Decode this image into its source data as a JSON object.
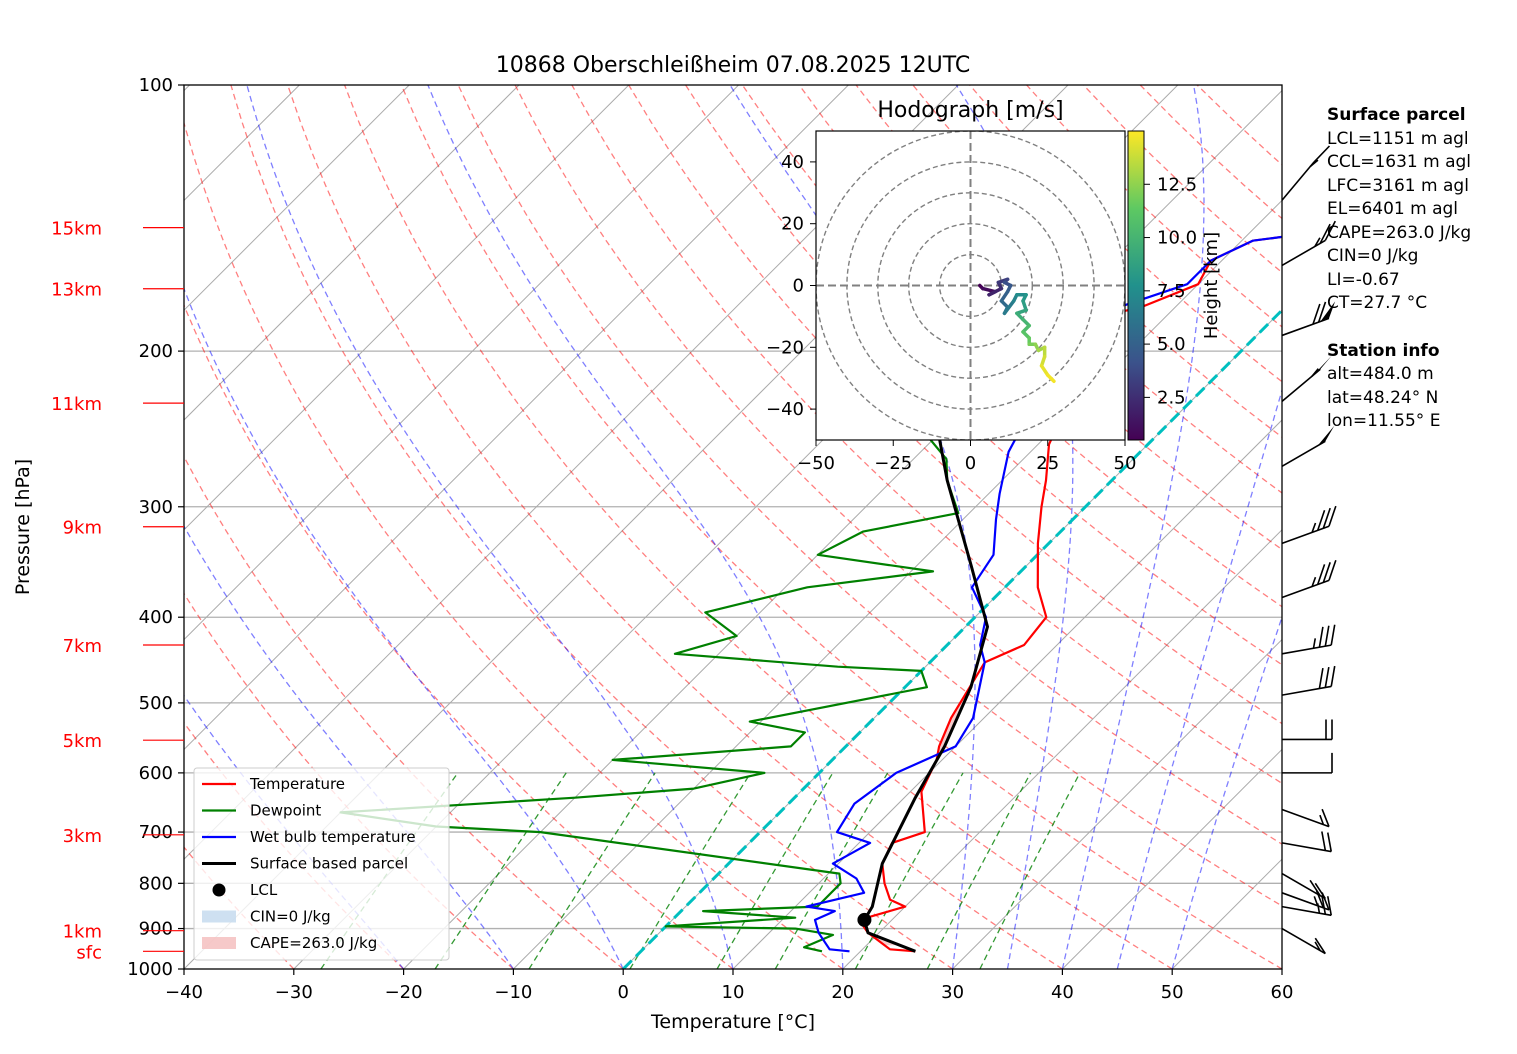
{
  "chart_data": {
    "type": "skewt",
    "title": "10868 Oberschleißheim 07.08.2025 12UTC",
    "xlabel": "Temperature [°C]",
    "ylabel": "Pressure [hPa]",
    "xlim": [
      -40,
      60
    ],
    "ylim": [
      1000,
      100
    ],
    "x_ticks": [
      "−40",
      "−30",
      "−20",
      "−10",
      "0",
      "10",
      "20",
      "30",
      "40",
      "50",
      "60"
    ],
    "y_ticks": [
      {
        "p": 100,
        "label": "100"
      },
      {
        "p": 200,
        "label": "200"
      },
      {
        "p": 300,
        "label": "300"
      },
      {
        "p": 400,
        "label": "400"
      },
      {
        "p": 500,
        "label": "500"
      },
      {
        "p": 600,
        "label": "600"
      },
      {
        "p": 700,
        "label": "700"
      },
      {
        "p": 800,
        "label": "800"
      },
      {
        "p": 900,
        "label": "900"
      },
      {
        "p": 1000,
        "label": "1000"
      }
    ],
    "height_ticks": [
      {
        "p": 145,
        "label": "15km"
      },
      {
        "p": 170,
        "label": "13km"
      },
      {
        "p": 229,
        "label": "11km"
      },
      {
        "p": 316,
        "label": "9km"
      },
      {
        "p": 430,
        "label": "7km"
      },
      {
        "p": 551,
        "label": "5km"
      },
      {
        "p": 705,
        "label": "3km"
      },
      {
        "p": 905,
        "label": "1km"
      },
      {
        "p": 955,
        "label": "sfc"
      }
    ],
    "series": [
      {
        "name": "Temperature",
        "color": "#ff0000",
        "points": [
          [
            25,
            955
          ],
          [
            22.5,
            950
          ],
          [
            19,
            910
          ],
          [
            17,
            880
          ],
          [
            20,
            850
          ],
          [
            18,
            835
          ],
          [
            16,
            800
          ],
          [
            14,
            760
          ],
          [
            13,
            720
          ],
          [
            15,
            700
          ],
          [
            11,
            630
          ],
          [
            9.5,
            580
          ],
          [
            8.5,
            560
          ],
          [
            7,
            520
          ],
          [
            5,
            450
          ],
          [
            7,
            430
          ],
          [
            6.5,
            400
          ],
          [
            3,
            370
          ],
          [
            -1,
            330
          ],
          [
            -4,
            300
          ],
          [
            -6,
            280
          ],
          [
            -9,
            255
          ],
          [
            -11,
            230
          ],
          [
            -12,
            215
          ],
          [
            -15,
            205
          ],
          [
            -18,
            200
          ],
          [
            -20,
            195
          ],
          [
            -20,
            190
          ],
          [
            -13,
            178
          ],
          [
            -10,
            168
          ],
          [
            -11,
            158
          ],
          [
            -9,
            150
          ],
          [
            -1,
            145
          ],
          [
            0,
            140
          ]
        ]
      },
      {
        "name": "Dewpoint",
        "color": "#008000",
        "points": [
          [
            16.5,
            955
          ],
          [
            14.5,
            945
          ],
          [
            16,
            915
          ],
          [
            12,
            900
          ],
          [
            0,
            895
          ],
          [
            11,
            875
          ],
          [
            2,
            860
          ],
          [
            12,
            850
          ],
          [
            12,
            800
          ],
          [
            11,
            780
          ],
          [
            -20,
            700
          ],
          [
            -30,
            690
          ],
          [
            -40,
            665
          ],
          [
            -20,
            640
          ],
          [
            -10,
            625
          ],
          [
            -5,
            600
          ],
          [
            -20,
            580
          ],
          [
            -5,
            560
          ],
          [
            -5,
            540
          ],
          [
            -11,
            525
          ],
          [
            2,
            480
          ],
          [
            0,
            460
          ],
          [
            -8,
            455
          ],
          [
            -24,
            440
          ],
          [
            -20,
            420
          ],
          [
            -25,
            395
          ],
          [
            -18,
            370
          ],
          [
            -8,
            355
          ],
          [
            -20,
            340
          ],
          [
            -18,
            320
          ],
          [
            -11,
            305
          ],
          [
            -15,
            280
          ],
          [
            -17,
            265
          ],
          [
            -22,
            245
          ],
          [
            -21,
            225
          ],
          [
            -25,
            205
          ],
          [
            -30,
            195
          ],
          [
            -28,
            180
          ],
          [
            -33,
            165
          ],
          [
            -30,
            155
          ],
          [
            -34,
            147
          ],
          [
            -33,
            142
          ],
          [
            -32,
            135
          ],
          [
            -34,
            130
          ]
        ]
      },
      {
        "name": "Wet bulb temperature",
        "color": "#0000ff",
        "points": [
          [
            19,
            955
          ],
          [
            17,
            950
          ],
          [
            14.5,
            910
          ],
          [
            13,
            880
          ],
          [
            14,
            860
          ],
          [
            11,
            850
          ],
          [
            15,
            820
          ],
          [
            13,
            790
          ],
          [
            9.5,
            760
          ],
          [
            11,
            720
          ],
          [
            7,
            700
          ],
          [
            6,
            650
          ],
          [
            7,
            600
          ],
          [
            10,
            560
          ],
          [
            9,
            520
          ],
          [
            5,
            450
          ],
          [
            3,
            430
          ],
          [
            1,
            400
          ],
          [
            -3,
            370
          ],
          [
            -4,
            340
          ],
          [
            -7,
            310
          ],
          [
            -9,
            290
          ],
          [
            -12,
            260
          ],
          [
            -14,
            230
          ],
          [
            -17,
            210
          ],
          [
            -20,
            200
          ],
          [
            -21,
            195
          ],
          [
            -21,
            190
          ],
          [
            -15,
            178
          ],
          [
            -11,
            168
          ],
          [
            -11,
            158
          ],
          [
            -9,
            150
          ],
          [
            -1,
            145
          ],
          [
            -0.5,
            140
          ]
        ]
      },
      {
        "name": "Surface based parcel",
        "color": "#000000",
        "points": [
          [
            25,
            955
          ],
          [
            19,
            910
          ],
          [
            17.5,
            880
          ],
          [
            17,
            850
          ],
          [
            14,
            760
          ],
          [
            11,
            640
          ],
          [
            9,
            560
          ],
          [
            6,
            480
          ],
          [
            2,
            410
          ],
          [
            -5,
            350
          ],
          [
            -15,
            280
          ],
          [
            -25,
            220
          ],
          [
            -35,
            175
          ],
          [
            -41,
            140
          ],
          [
            -43,
            125
          ]
        ]
      }
    ],
    "lcl": {
      "t": 17.5,
      "p": 880
    },
    "cape_fill": {
      "color": "#f4c0c0"
    },
    "cin_fill": {
      "color": "#c6dbef"
    },
    "legend": {
      "placement": "lower-left",
      "entries": [
        {
          "label": "Temperature",
          "kind": "line",
          "color": "#ff0000"
        },
        {
          "label": "Dewpoint",
          "kind": "line",
          "color": "#008000"
        },
        {
          "label": "Wet bulb temperature",
          "kind": "line",
          "color": "#0000ff"
        },
        {
          "label": "Surface based parcel",
          "kind": "line",
          "color": "#000000"
        },
        {
          "label": "LCL",
          "kind": "dot",
          "color": "#000000"
        },
        {
          "label": "CIN=0 J/kg",
          "kind": "patch",
          "color": "#c6dbef"
        },
        {
          "label": "CAPE=263.0 J/kg",
          "kind": "patch",
          "color": "#f4c0c0"
        }
      ]
    },
    "wind_barbs": [
      {
        "p": 135,
        "speed_kt": 15,
        "dir_deg": 320
      },
      {
        "p": 160,
        "speed_kt": 25,
        "dir_deg": 300
      },
      {
        "p": 192,
        "speed_kt": 70,
        "dir_deg": 290
      },
      {
        "p": 228,
        "speed_kt": 55,
        "dir_deg": 310
      },
      {
        "p": 270,
        "speed_kt": 50,
        "dir_deg": 300
      },
      {
        "p": 330,
        "speed_kt": 35,
        "dir_deg": 290
      },
      {
        "p": 380,
        "speed_kt": 35,
        "dir_deg": 290
      },
      {
        "p": 440,
        "speed_kt": 35,
        "dir_deg": 280
      },
      {
        "p": 490,
        "speed_kt": 30,
        "dir_deg": 280
      },
      {
        "p": 550,
        "speed_kt": 20,
        "dir_deg": 270
      },
      {
        "p": 600,
        "speed_kt": 10,
        "dir_deg": 270
      },
      {
        "p": 660,
        "speed_kt": 15,
        "dir_deg": 250
      },
      {
        "p": 720,
        "speed_kt": 20,
        "dir_deg": 260
      },
      {
        "p": 780,
        "speed_kt": 20,
        "dir_deg": 240
      },
      {
        "p": 820,
        "speed_kt": 25,
        "dir_deg": 250
      },
      {
        "p": 850,
        "speed_kt": 25,
        "dir_deg": 260
      },
      {
        "p": 900,
        "speed_kt": 15,
        "dir_deg": 240
      }
    ],
    "freezing_isotherm": {
      "color": "#00bfbf",
      "t": 0
    },
    "hodograph": {
      "title": "Hodograph [m/s]",
      "xlim": [
        -50,
        50
      ],
      "ylim": [
        -50,
        50
      ],
      "x_ticks": [
        "−50",
        "−25",
        "0",
        "25",
        "50"
      ],
      "y_ticks": [
        {
          "v": 40,
          "label": "40"
        },
        {
          "v": 20,
          "label": "20"
        },
        {
          "v": 0,
          "label": "0"
        },
        {
          "v": -20,
          "label": "−20"
        },
        {
          "v": -40,
          "label": "−40"
        }
      ],
      "rings": [
        10,
        20,
        30,
        40,
        50
      ],
      "colorbar_label": "Height [km]",
      "colorbar_ticks": [
        {
          "v": 2.5,
          "label": "2.5"
        },
        {
          "v": 5.0,
          "label": "5.0"
        },
        {
          "v": 7.5,
          "label": "7.5"
        },
        {
          "v": 10.0,
          "label": "10.0"
        },
        {
          "v": 12.5,
          "label": "12.5"
        }
      ],
      "colorbar_range": [
        0.5,
        15
      ],
      "points": [
        [
          3,
          0,
          0.5
        ],
        [
          4,
          -1,
          1
        ],
        [
          8,
          -2,
          1.5
        ],
        [
          6,
          -3,
          2
        ],
        [
          10,
          -1,
          2.5
        ],
        [
          9,
          1,
          3
        ],
        [
          12,
          2,
          3.5
        ],
        [
          11,
          1,
          4
        ],
        [
          13,
          0,
          4.5
        ],
        [
          12,
          -2,
          5
        ],
        [
          10,
          -5,
          5.5
        ],
        [
          12,
          -7,
          6
        ],
        [
          11,
          -9,
          6.5
        ],
        [
          14,
          -5,
          7
        ],
        [
          15,
          -3,
          7.5
        ],
        [
          18,
          -3,
          8
        ],
        [
          17,
          -5,
          8.5
        ],
        [
          18,
          -8,
          9
        ],
        [
          15,
          -9,
          9.5
        ],
        [
          17,
          -11,
          10
        ],
        [
          19,
          -13,
          10.5
        ],
        [
          17,
          -15,
          11
        ],
        [
          19,
          -17,
          11.5
        ],
        [
          19,
          -19,
          12
        ],
        [
          21,
          -19,
          12.5
        ],
        [
          22,
          -21,
          13
        ],
        [
          24,
          -20,
          13.5
        ],
        [
          24,
          -23,
          14
        ],
        [
          23,
          -26,
          14.5
        ],
        [
          25,
          -29,
          14.8
        ],
        [
          27,
          -31,
          15
        ]
      ]
    }
  },
  "info": {
    "parcel_title": "Surface parcel",
    "parcel_lines": [
      "LCL=1151 m agl",
      "CCL=1631 m agl",
      "LFC=3161 m agl",
      "EL=6401 m agl",
      "CAPE=263.0 J/kg",
      "CIN=0 J/kg",
      "LI=-0.67",
      "CT=27.7 °C"
    ],
    "station_title": "Station info",
    "station_lines": [
      "alt=484.0 m",
      "lat=48.24° N",
      "lon=11.55° E"
    ]
  }
}
